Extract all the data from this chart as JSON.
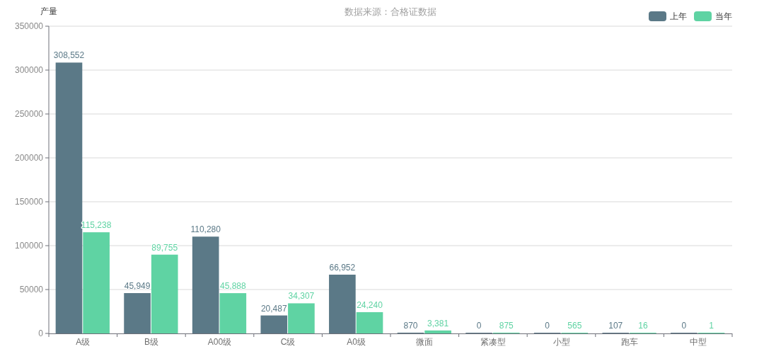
{
  "chart_data": {
    "type": "bar",
    "title": "数据来源：合格证数据",
    "ylabel": "产量",
    "categories": [
      "A级",
      "B级",
      "A00级",
      "C级",
      "A0级",
      "微面",
      "紧凑型",
      "小型",
      "跑车",
      "中型"
    ],
    "series": [
      {
        "name": "上年",
        "color": "#5b7987",
        "values": [
          308552,
          45949,
          110280,
          20487,
          66952,
          870,
          0,
          0,
          107,
          0
        ],
        "value_labels": [
          "308,552",
          "45,949",
          "110,280",
          "20,487",
          "66,952",
          "870",
          "0",
          "0",
          "107",
          "0"
        ]
      },
      {
        "name": "当年",
        "color": "#5fd3a3",
        "values": [
          115238,
          89755,
          45888,
          34307,
          24240,
          3381,
          875,
          565,
          16,
          1
        ],
        "value_labels": [
          "115,238",
          "89,755",
          "45,888",
          "34,307",
          "24,240",
          "3,381",
          "875",
          "565",
          "16",
          "1"
        ]
      }
    ],
    "ylim": [
      0,
      350000
    ],
    "yticks": [
      0,
      50000,
      100000,
      150000,
      200000,
      250000,
      300000,
      350000
    ],
    "grid": "y",
    "legend": "top right"
  }
}
